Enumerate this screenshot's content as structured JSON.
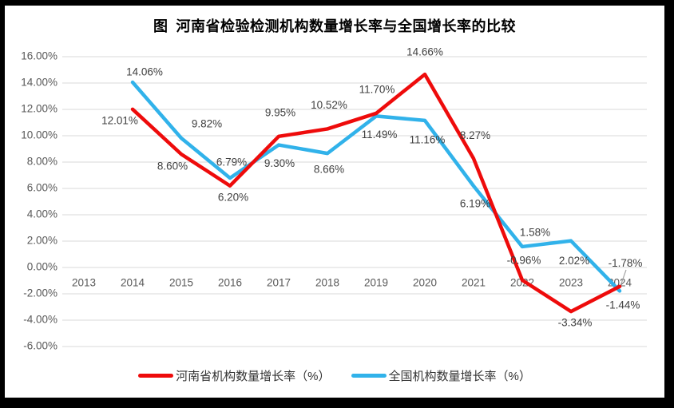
{
  "window": {
    "frame_color": "#000000",
    "surface_color": "#ffffff"
  },
  "title": "图  河南省检验检测机构数量增长率与全国增长率的比较",
  "chart_data": {
    "type": "line",
    "title": "图  河南省检验检测机构数量增长率与全国增长率的比较",
    "categories": [
      "2013",
      "2014",
      "2015",
      "2016",
      "2017",
      "2018",
      "2019",
      "2020",
      "2021",
      "2022",
      "2023",
      "2024"
    ],
    "series": [
      {
        "name": "河南省机构数量增长率（%）",
        "color": "#ee0b0b",
        "values": [
          null,
          12.01,
          8.6,
          6.2,
          9.95,
          10.52,
          11.7,
          14.66,
          8.27,
          -0.96,
          -3.34,
          -1.44
        ]
      },
      {
        "name": "全国机构数量增长率（%）",
        "color": "#31b2ea",
        "values": [
          null,
          14.06,
          9.82,
          6.79,
          9.3,
          8.66,
          11.49,
          11.16,
          6.19,
          1.58,
          2.02,
          -1.78
        ]
      }
    ],
    "ylim": [
      -6,
      16
    ],
    "ytick_step": 2,
    "ytick_labels": [
      "16.00%",
      "14.00%",
      "12.00%",
      "10.00%",
      "8.00%",
      "6.00%",
      "4.00%",
      "2.00%",
      "0.00%",
      "-2.00%",
      "-4.00%",
      "-6.00%"
    ],
    "data_label_format": "0.00%",
    "grid": true,
    "legend_position": "bottom",
    "colors": {
      "grid": "#d9d9d9",
      "axis_text": "#595959",
      "data_label_text": "#404040",
      "leader_line": "#a6a6a6"
    }
  }
}
